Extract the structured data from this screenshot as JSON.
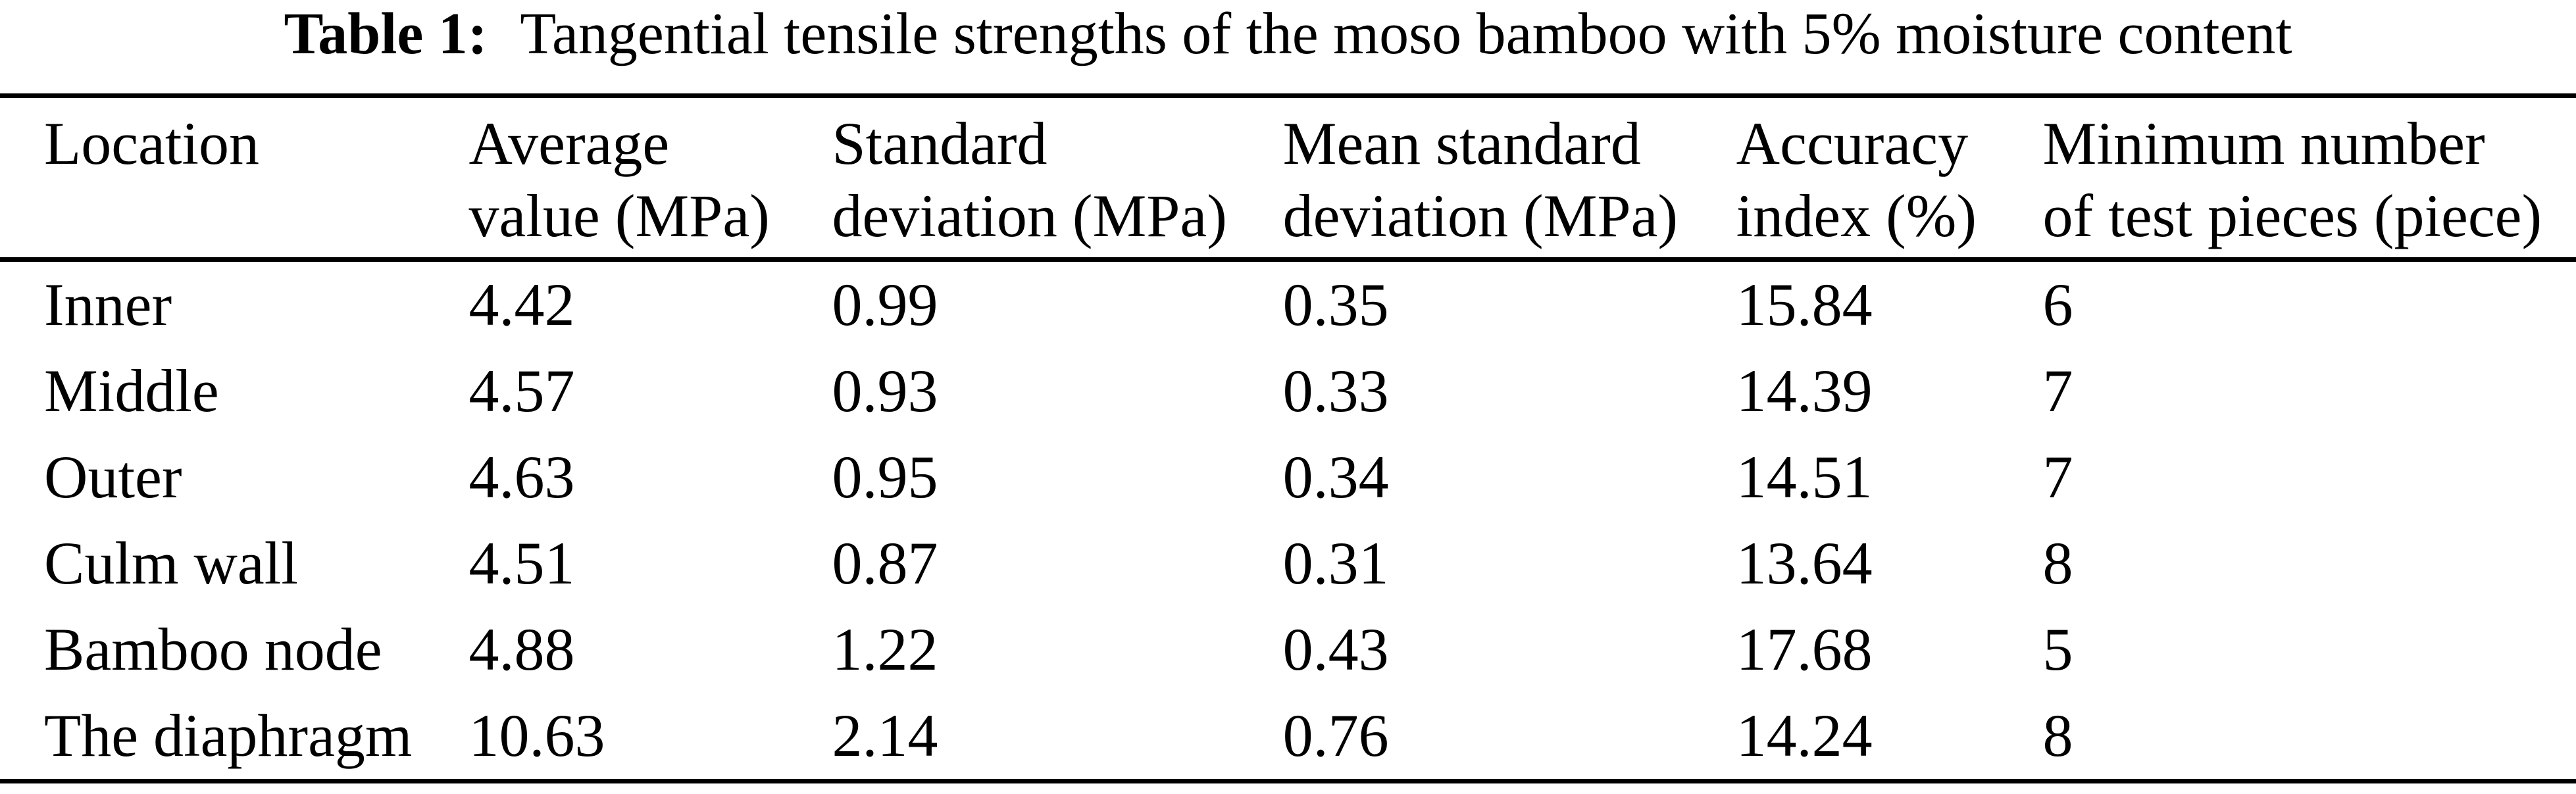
{
  "caption": {
    "label": "Table 1:",
    "text": "Tangential tensile strengths of the moso bamboo with 5% moisture content"
  },
  "table": {
    "columns": [
      "Location",
      "Average\nvalue (MPa)",
      "Standard\ndeviation (MPa)",
      "Mean standard\ndeviation (MPa)",
      "Accuracy\nindex (%)",
      "Minimum number\nof test pieces (piece)"
    ],
    "rows": [
      [
        "Inner",
        "4.42",
        "0.99",
        "0.35",
        "15.84",
        "6"
      ],
      [
        "Middle",
        "4.57",
        "0.93",
        "0.33",
        "14.39",
        "7"
      ],
      [
        "Outer",
        "4.63",
        "0.95",
        "0.34",
        "14.51",
        "7"
      ],
      [
        "Culm wall",
        "4.51",
        "0.87",
        "0.31",
        "13.64",
        "8"
      ],
      [
        "Bamboo node",
        "4.88",
        "1.22",
        "0.43",
        "17.68",
        "5"
      ],
      [
        "The diaphragm",
        "10.63",
        "2.14",
        "0.76",
        "14.24",
        "8"
      ]
    ]
  },
  "colors": {
    "text": "#000000",
    "background": "#ffffff",
    "rule": "#000000"
  }
}
